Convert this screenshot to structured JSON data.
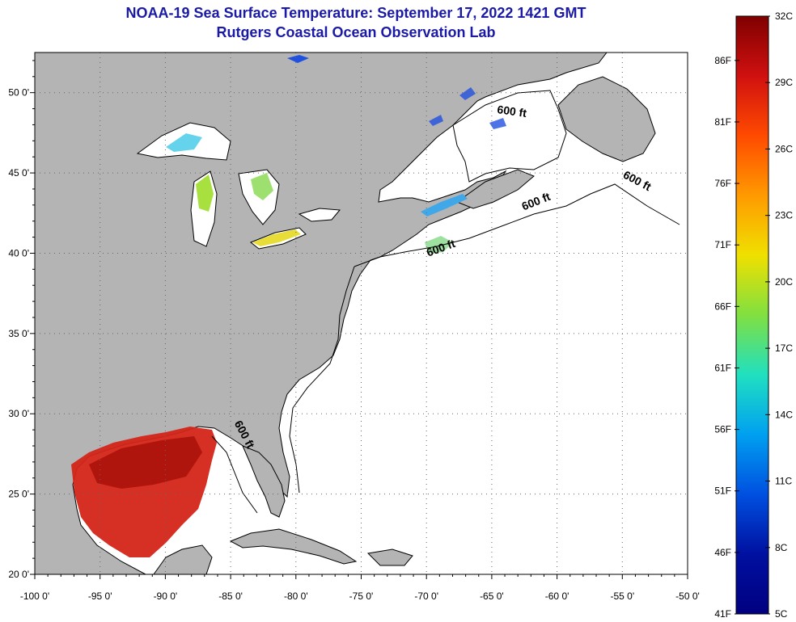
{
  "title": {
    "line1": "NOAA-19 Sea Surface Temperature:  September 17, 2022 1421 GMT",
    "line2": "Rutgers Coastal Ocean Observation Lab"
  },
  "map": {
    "lon_range": [
      -100,
      -50
    ],
    "lat_range": [
      20,
      52.5
    ],
    "x_ticks": [
      {
        "lon": -100,
        "label": "-100 0'"
      },
      {
        "lon": -95,
        "label": "-95 0'"
      },
      {
        "lon": -90,
        "label": "-90 0'"
      },
      {
        "lon": -85,
        "label": "-85 0'"
      },
      {
        "lon": -80,
        "label": "-80 0'"
      },
      {
        "lon": -75,
        "label": "-75 0'"
      },
      {
        "lon": -70,
        "label": "-70 0'"
      },
      {
        "lon": -65,
        "label": "-65 0'"
      },
      {
        "lon": -60,
        "label": "-60 0'"
      },
      {
        "lon": -55,
        "label": "-55 0'"
      },
      {
        "lon": -50,
        "label": "-50 0'"
      }
    ],
    "y_ticks": [
      {
        "lat": 20,
        "label": "20 0'"
      },
      {
        "lat": 25,
        "label": "25 0'"
      },
      {
        "lat": 30,
        "label": "30 0'"
      },
      {
        "lat": 35,
        "label": "35 0'"
      },
      {
        "lat": 40,
        "label": "40 0'"
      },
      {
        "lat": 45,
        "label": "45 0'"
      },
      {
        "lat": 50,
        "label": "50 0'"
      }
    ],
    "isobath_labels": [
      {
        "text": "600 ft",
        "lon": -63.5,
        "lat": 48.6,
        "angle": 8
      },
      {
        "text": "600 ft",
        "lon": -54,
        "lat": 44.3,
        "angle": 28
      },
      {
        "text": "600 ft",
        "lon": -61.5,
        "lat": 43.0,
        "angle": -22
      },
      {
        "text": "600 ft",
        "lon": -68.8,
        "lat": 40.1,
        "angle": -20
      },
      {
        "text": "600 ft",
        "lon": -84.2,
        "lat": 28.6,
        "angle": 62
      }
    ],
    "colors": {
      "land": "#b4b4b4",
      "ocean": "#ffffff",
      "grid": "#777777",
      "title": "#1a1aa6",
      "gulf_sst": "#d42418",
      "lake_warm": "#e8dc38",
      "lake_mid": "#a8e040",
      "lake_cool": "#40c8e8",
      "cold": "#2050e0"
    }
  },
  "colorbar": {
    "celsius_min": 5,
    "celsius_max": 32,
    "fahrenheit_labels": [
      "86F",
      "81F",
      "76F",
      "71F",
      "66F",
      "61F",
      "56F",
      "51F",
      "46F",
      "41F"
    ],
    "celsius_labels": [
      "32C",
      "29C",
      "26C",
      "23C",
      "20C",
      "17C",
      "14C",
      "11C",
      "8C",
      "5C"
    ],
    "gradient_stops": [
      "#7f0000",
      "#d01010",
      "#ff4a00",
      "#ff9a00",
      "#f0e000",
      "#80e040",
      "#20e0c0",
      "#00a0f0",
      "#0050e0",
      "#0010a0",
      "#000080"
    ]
  }
}
